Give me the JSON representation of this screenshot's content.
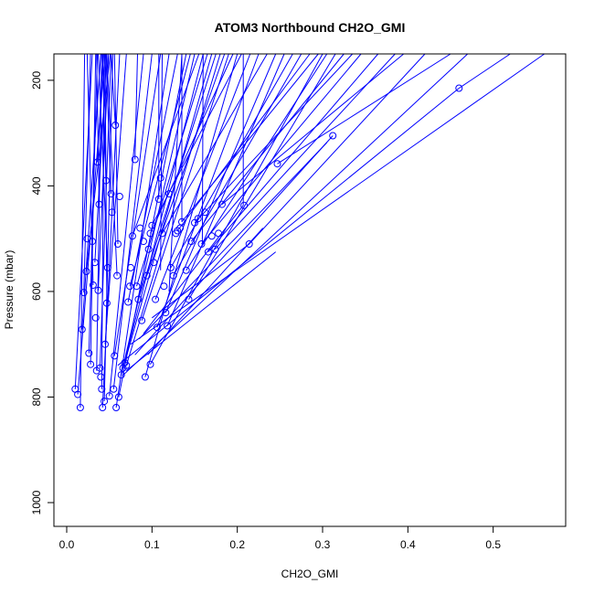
{
  "chart_data": {
    "type": "scatter",
    "title": "ATOM3 Northbound CH2O_GMI",
    "xlabel": "CH2O_GMI",
    "ylabel": "Pressure (mbar)",
    "xlim": [
      -0.015,
      0.585
    ],
    "ylim": [
      1045,
      150
    ],
    "y_reversed": true,
    "x_ticks": [
      0.0,
      0.1,
      0.2,
      0.3,
      0.4,
      0.5
    ],
    "x_tick_labels": [
      "0.0",
      "0.1",
      "0.2",
      "0.3",
      "0.4",
      "0.5"
    ],
    "y_ticks": [
      200,
      400,
      600,
      800,
      1000
    ],
    "y_tick_labels": [
      "200",
      "400",
      "600",
      "800",
      "1000"
    ],
    "series_color": "#0000ff",
    "grid": false,
    "legend": "none",
    "points": [
      [
        0.01,
        785
      ],
      [
        0.013,
        795
      ],
      [
        0.016,
        820
      ],
      [
        0.018,
        672
      ],
      [
        0.02,
        602
      ],
      [
        0.023,
        562
      ],
      [
        0.024,
        500
      ],
      [
        0.026,
        717
      ],
      [
        0.028,
        738
      ],
      [
        0.03,
        505
      ],
      [
        0.031,
        588
      ],
      [
        0.033,
        545
      ],
      [
        0.034,
        650
      ],
      [
        0.035,
        750
      ],
      [
        0.036,
        355
      ],
      [
        0.037,
        598
      ],
      [
        0.038,
        435
      ],
      [
        0.039,
        745
      ],
      [
        0.04,
        762
      ],
      [
        0.041,
        785
      ],
      [
        0.042,
        820
      ],
      [
        0.044,
        808
      ],
      [
        0.045,
        700
      ],
      [
        0.046,
        390
      ],
      [
        0.047,
        622
      ],
      [
        0.048,
        555
      ],
      [
        0.05,
        798
      ],
      [
        0.052,
        415
      ],
      [
        0.053,
        450
      ],
      [
        0.055,
        785
      ],
      [
        0.056,
        722
      ],
      [
        0.057,
        285
      ],
      [
        0.058,
        820
      ],
      [
        0.059,
        570
      ],
      [
        0.06,
        510
      ],
      [
        0.061,
        800
      ],
      [
        0.062,
        420
      ],
      [
        0.064,
        758
      ],
      [
        0.066,
        745
      ],
      [
        0.068,
        735
      ],
      [
        0.07,
        740
      ],
      [
        0.072,
        620
      ],
      [
        0.074,
        590
      ],
      [
        0.075,
        555
      ],
      [
        0.077,
        495
      ],
      [
        0.08,
        350
      ],
      [
        0.082,
        590
      ],
      [
        0.084,
        615
      ],
      [
        0.086,
        480
      ],
      [
        0.088,
        655
      ],
      [
        0.09,
        505
      ],
      [
        0.092,
        762
      ],
      [
        0.094,
        570
      ],
      [
        0.096,
        520
      ],
      [
        0.098,
        490
      ],
      [
        0.1,
        475
      ],
      [
        0.102,
        545
      ],
      [
        0.104,
        615
      ],
      [
        0.106,
        668
      ],
      [
        0.108,
        425
      ],
      [
        0.11,
        385
      ],
      [
        0.112,
        490
      ],
      [
        0.114,
        590
      ],
      [
        0.116,
        640
      ],
      [
        0.118,
        665
      ],
      [
        0.12,
        415
      ],
      [
        0.122,
        555
      ],
      [
        0.125,
        570
      ],
      [
        0.128,
        490
      ],
      [
        0.13,
        485
      ],
      [
        0.133,
        480
      ],
      [
        0.135,
        468
      ],
      [
        0.14,
        560
      ],
      [
        0.143,
        615
      ],
      [
        0.146,
        505
      ],
      [
        0.15,
        470
      ],
      [
        0.154,
        462
      ],
      [
        0.158,
        510
      ],
      [
        0.162,
        450
      ],
      [
        0.166,
        525
      ],
      [
        0.17,
        495
      ],
      [
        0.174,
        520
      ],
      [
        0.178,
        490
      ],
      [
        0.182,
        435
      ],
      [
        0.208,
        437
      ],
      [
        0.214,
        510
      ],
      [
        0.247,
        358
      ],
      [
        0.312,
        305
      ],
      [
        0.46,
        215
      ],
      [
        0.098,
        738
      ]
    ],
    "segments": [
      [
        [
          0.01,
          785
        ],
        [
          0.03,
          150
        ]
      ],
      [
        [
          0.013,
          795
        ],
        [
          0.045,
          150
        ]
      ],
      [
        [
          0.016,
          820
        ],
        [
          0.021,
          150
        ]
      ],
      [
        [
          0.018,
          672
        ],
        [
          0.04,
          150
        ]
      ],
      [
        [
          0.02,
          602
        ],
        [
          0.028,
          150
        ]
      ],
      [
        [
          0.023,
          562
        ],
        [
          0.051,
          150
        ]
      ],
      [
        [
          0.026,
          717
        ],
        [
          0.036,
          150
        ]
      ],
      [
        [
          0.028,
          738
        ],
        [
          0.034,
          150
        ]
      ],
      [
        [
          0.031,
          588
        ],
        [
          0.024,
          150
        ]
      ],
      [
        [
          0.033,
          545
        ],
        [
          0.047,
          150
        ]
      ],
      [
        [
          0.035,
          750
        ],
        [
          0.041,
          150
        ]
      ],
      [
        [
          0.036,
          355
        ],
        [
          0.043,
          150
        ]
      ],
      [
        [
          0.037,
          598
        ],
        [
          0.049,
          150
        ]
      ],
      [
        [
          0.038,
          435
        ],
        [
          0.035,
          150
        ]
      ],
      [
        [
          0.039,
          745
        ],
        [
          0.052,
          150
        ]
      ],
      [
        [
          0.041,
          785
        ],
        [
          0.044,
          150
        ]
      ],
      [
        [
          0.042,
          820
        ],
        [
          0.062,
          150
        ]
      ],
      [
        [
          0.044,
          808
        ],
        [
          0.054,
          150
        ]
      ],
      [
        [
          0.045,
          700
        ],
        [
          0.07,
          150
        ]
      ],
      [
        [
          0.046,
          390
        ],
        [
          0.042,
          150
        ]
      ],
      [
        [
          0.047,
          622
        ],
        [
          0.045,
          150
        ]
      ],
      [
        [
          0.048,
          555
        ],
        [
          0.037,
          150
        ]
      ],
      [
        [
          0.05,
          798
        ],
        [
          0.09,
          150
        ]
      ],
      [
        [
          0.052,
          415
        ],
        [
          0.046,
          150
        ]
      ],
      [
        [
          0.055,
          785
        ],
        [
          0.1,
          150
        ]
      ],
      [
        [
          0.056,
          722
        ],
        [
          0.11,
          150
        ]
      ],
      [
        [
          0.058,
          820
        ],
        [
          0.12,
          150
        ]
      ],
      [
        [
          0.059,
          570
        ],
        [
          0.047,
          150
        ]
      ],
      [
        [
          0.06,
          510
        ],
        [
          0.056,
          150
        ]
      ],
      [
        [
          0.061,
          800
        ],
        [
          0.14,
          150
        ]
      ],
      [
        [
          0.064,
          758
        ],
        [
          0.15,
          150
        ]
      ],
      [
        [
          0.066,
          745
        ],
        [
          0.16,
          150
        ]
      ],
      [
        [
          0.068,
          735
        ],
        [
          0.17,
          150
        ]
      ],
      [
        [
          0.07,
          740
        ],
        [
          0.18,
          150
        ]
      ],
      [
        [
          0.072,
          620
        ],
        [
          0.13,
          150
        ]
      ],
      [
        [
          0.074,
          590
        ],
        [
          0.145,
          150
        ]
      ],
      [
        [
          0.077,
          495
        ],
        [
          0.155,
          150
        ]
      ],
      [
        [
          0.082,
          590
        ],
        [
          0.165,
          150
        ]
      ],
      [
        [
          0.084,
          615
        ],
        [
          0.175,
          150
        ]
      ],
      [
        [
          0.088,
          655
        ],
        [
          0.19,
          150
        ]
      ],
      [
        [
          0.092,
          762
        ],
        [
          0.2,
          150
        ]
      ],
      [
        [
          0.094,
          570
        ],
        [
          0.185,
          150
        ]
      ],
      [
        [
          0.098,
          490
        ],
        [
          0.195,
          150
        ]
      ],
      [
        [
          0.1,
          475
        ],
        [
          0.205,
          150
        ]
      ],
      [
        [
          0.104,
          615
        ],
        [
          0.215,
          150
        ]
      ],
      [
        [
          0.106,
          668
        ],
        [
          0.225,
          150
        ]
      ],
      [
        [
          0.112,
          490
        ],
        [
          0.235,
          150
        ]
      ],
      [
        [
          0.116,
          640
        ],
        [
          0.245,
          150
        ]
      ],
      [
        [
          0.118,
          665
        ],
        [
          0.255,
          150
        ]
      ],
      [
        [
          0.122,
          555
        ],
        [
          0.265,
          150
        ]
      ],
      [
        [
          0.125,
          570
        ],
        [
          0.275,
          150
        ]
      ],
      [
        [
          0.13,
          485
        ],
        [
          0.285,
          150
        ]
      ],
      [
        [
          0.135,
          468
        ],
        [
          0.295,
          150
        ]
      ],
      [
        [
          0.14,
          560
        ],
        [
          0.305,
          150
        ]
      ],
      [
        [
          0.143,
          615
        ],
        [
          0.315,
          150
        ]
      ],
      [
        [
          0.146,
          505
        ],
        [
          0.325,
          150
        ]
      ],
      [
        [
          0.15,
          470
        ],
        [
          0.335,
          150
        ]
      ],
      [
        [
          0.158,
          510
        ],
        [
          0.345,
          150
        ]
      ],
      [
        [
          0.166,
          525
        ],
        [
          0.365,
          150
        ]
      ],
      [
        [
          0.174,
          520
        ],
        [
          0.385,
          150
        ]
      ],
      [
        [
          0.182,
          435
        ],
        [
          0.395,
          150
        ]
      ],
      [
        [
          0.214,
          510
        ],
        [
          0.42,
          150
        ]
      ],
      [
        [
          0.247,
          358
        ],
        [
          0.45,
          150
        ]
      ],
      [
        [
          0.46,
          215
        ],
        [
          0.52,
          150
        ]
      ],
      [
        [
          0.098,
          738
        ],
        [
          0.3,
          150
        ]
      ],
      [
        [
          0.065,
          760
        ],
        [
          0.47,
          150
        ]
      ],
      [
        [
          0.075,
          700
        ],
        [
          0.56,
          150
        ]
      ],
      [
        [
          0.085,
          690
        ],
        [
          0.305,
          318
        ]
      ],
      [
        [
          0.09,
          680
        ],
        [
          0.207,
          437
        ]
      ],
      [
        [
          0.095,
          720
        ],
        [
          0.23,
          480
        ]
      ],
      [
        [
          0.07,
          750
        ],
        [
          0.245,
          525
        ]
      ],
      [
        [
          0.06,
          740
        ],
        [
          0.46,
          215
        ]
      ],
      [
        [
          0.08,
          720
        ],
        [
          0.312,
          305
        ]
      ],
      [
        [
          0.1,
          650
        ],
        [
          0.214,
          510
        ]
      ],
      [
        [
          0.108,
          425
        ],
        [
          0.108,
          150
        ]
      ],
      [
        [
          0.135,
          468
        ],
        [
          0.135,
          150
        ]
      ],
      [
        [
          0.207,
          437
        ],
        [
          0.207,
          150
        ]
      ],
      [
        [
          0.159,
          510
        ],
        [
          0.16,
          150
        ]
      ],
      [
        [
          0.12,
          600
        ],
        [
          0.135,
          150
        ]
      ],
      [
        [
          0.11,
          560
        ],
        [
          0.112,
          150
        ]
      ],
      [
        [
          0.057,
          285
        ],
        [
          0.052,
          150
        ]
      ],
      [
        [
          0.08,
          350
        ],
        [
          0.083,
          150
        ]
      ]
    ]
  }
}
